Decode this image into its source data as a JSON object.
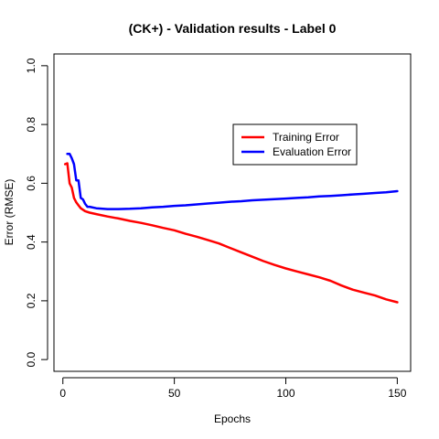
{
  "chart_data": {
    "type": "line",
    "title": "(CK+) - Validation results - Label 0",
    "xlabel": "Epochs",
    "ylabel": "Error (RMSE)",
    "xlim": [
      -4,
      156
    ],
    "ylim": [
      -0.04,
      1.04
    ],
    "x_ticks": [
      0,
      50,
      100,
      150
    ],
    "y_ticks": [
      0.0,
      0.2,
      0.4,
      0.6,
      0.8,
      1.0
    ],
    "x_tick_labels": [
      "0",
      "50",
      "100",
      "150"
    ],
    "y_tick_labels": [
      "0.0",
      "0.2",
      "0.4",
      "0.6",
      "0.8",
      "1.0"
    ],
    "grid": false,
    "legend_position": "right",
    "series": [
      {
        "name": "Training Error",
        "color": "#ff0000",
        "x": [
          1,
          2,
          3,
          4,
          5,
          6,
          7,
          8,
          9,
          10,
          12,
          15,
          20,
          25,
          30,
          35,
          40,
          45,
          50,
          55,
          60,
          65,
          70,
          75,
          80,
          85,
          90,
          95,
          100,
          105,
          110,
          115,
          120,
          125,
          130,
          135,
          140,
          145,
          150
        ],
        "values": [
          0.665,
          0.668,
          0.6,
          0.585,
          0.55,
          0.535,
          0.525,
          0.515,
          0.51,
          0.505,
          0.5,
          0.495,
          0.487,
          0.48,
          0.472,
          0.465,
          0.457,
          0.448,
          0.44,
          0.428,
          0.418,
          0.407,
          0.395,
          0.38,
          0.365,
          0.35,
          0.335,
          0.322,
          0.31,
          0.3,
          0.29,
          0.28,
          0.268,
          0.252,
          0.238,
          0.228,
          0.218,
          0.205,
          0.195
        ]
      },
      {
        "name": "Evaluation Error",
        "color": "#0000ff",
        "x": [
          2,
          3,
          4,
          5,
          6,
          7,
          8,
          9,
          10,
          11,
          12,
          15,
          20,
          25,
          30,
          35,
          40,
          45,
          50,
          55,
          60,
          65,
          70,
          75,
          80,
          85,
          90,
          95,
          100,
          105,
          110,
          115,
          120,
          125,
          130,
          135,
          140,
          145,
          150
        ],
        "values": [
          0.7,
          0.7,
          0.685,
          0.665,
          0.61,
          0.61,
          0.55,
          0.545,
          0.53,
          0.52,
          0.52,
          0.515,
          0.512,
          0.512,
          0.513,
          0.515,
          0.518,
          0.52,
          0.523,
          0.525,
          0.528,
          0.531,
          0.534,
          0.537,
          0.539,
          0.542,
          0.544,
          0.546,
          0.548,
          0.55,
          0.552,
          0.555,
          0.557,
          0.559,
          0.562,
          0.564,
          0.567,
          0.569,
          0.573
        ]
      }
    ]
  }
}
